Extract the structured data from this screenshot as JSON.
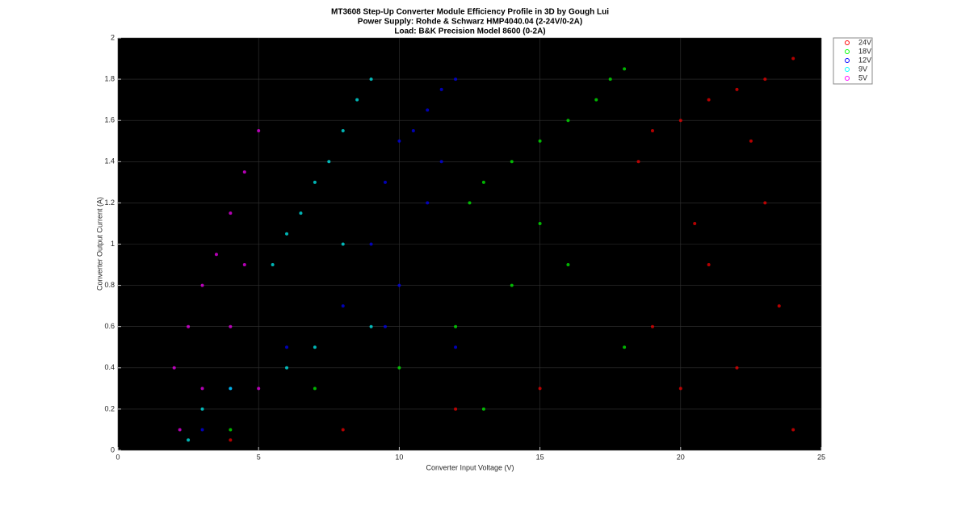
{
  "chart_data": {
    "type": "scatter",
    "title": "MT3608 Step-Up Converter Module Efficiency Profile in 3D by Gough Lui",
    "subtitle": [
      "Power Supply: Rohde & Schwarz HMP4040.04 (2-24V/0-2A)",
      "Load: B&K Precision Model 8600 (0-2A)"
    ],
    "x_label": "Converter Input Voltage (V)",
    "y_label": "Converter Output Current (A)",
    "xlim": [
      0,
      25
    ],
    "xticks": [
      0,
      5,
      10,
      15,
      20,
      25
    ],
    "ylim": [
      0,
      2
    ],
    "yticks": [
      0,
      0.2,
      0.4,
      0.6,
      0.8,
      1,
      1.2,
      1.4,
      1.6,
      1.8,
      2
    ],
    "grid": true,
    "legend": "outside-right",
    "series": [
      {
        "name": "24V",
        "color": "#ff0000",
        "x": [
          19,
          19,
          20,
          20,
          21,
          21,
          22,
          22,
          23,
          23,
          24,
          24,
          18.5,
          20.5,
          22.5,
          23.5,
          15,
          12,
          8,
          4
        ],
        "y": [
          1.55,
          0.6,
          1.6,
          0.3,
          1.7,
          0.9,
          1.75,
          0.4,
          1.8,
          1.2,
          1.9,
          0.1,
          1.4,
          1.1,
          1.5,
          0.7,
          0.3,
          0.2,
          0.1,
          0.05
        ]
      },
      {
        "name": "18V",
        "color": "#00ff00",
        "x": [
          12.5,
          13,
          14,
          15,
          16,
          17,
          18,
          18,
          17.5,
          16,
          14,
          12,
          10,
          7,
          4,
          13,
          15
        ],
        "y": [
          1.2,
          1.3,
          1.4,
          1.5,
          1.6,
          1.7,
          1.85,
          0.5,
          1.8,
          0.9,
          0.8,
          0.6,
          0.4,
          0.3,
          0.1,
          0.2,
          1.1
        ]
      },
      {
        "name": "12V",
        "color": "#0000ff",
        "x": [
          9,
          9.5,
          10,
          10.5,
          11,
          11.5,
          12,
          12,
          11,
          10,
          8,
          6,
          4,
          3,
          9.5,
          11.5
        ],
        "y": [
          1.0,
          1.3,
          1.5,
          1.55,
          1.65,
          1.75,
          1.8,
          0.5,
          1.2,
          0.8,
          0.7,
          0.5,
          0.3,
          0.1,
          0.6,
          1.4
        ]
      },
      {
        "name": "9V",
        "color": "#00ffff",
        "x": [
          5.5,
          6,
          6.5,
          7,
          7.5,
          8,
          8.5,
          9,
          9,
          8,
          7,
          6,
          4,
          3,
          2.5
        ],
        "y": [
          0.9,
          1.05,
          1.15,
          1.3,
          1.4,
          1.55,
          1.7,
          1.8,
          0.6,
          1.0,
          0.5,
          0.4,
          0.3,
          0.2,
          0.05
        ]
      },
      {
        "name": "5V",
        "color": "#ff00ff",
        "x": [
          2,
          2.5,
          3,
          3.5,
          4,
          4.5,
          5,
          5,
          4,
          3,
          2.2,
          4.5
        ],
        "y": [
          0.4,
          0.6,
          0.8,
          0.95,
          1.15,
          1.35,
          1.55,
          0.3,
          0.6,
          0.3,
          0.1,
          0.9
        ]
      }
    ]
  }
}
